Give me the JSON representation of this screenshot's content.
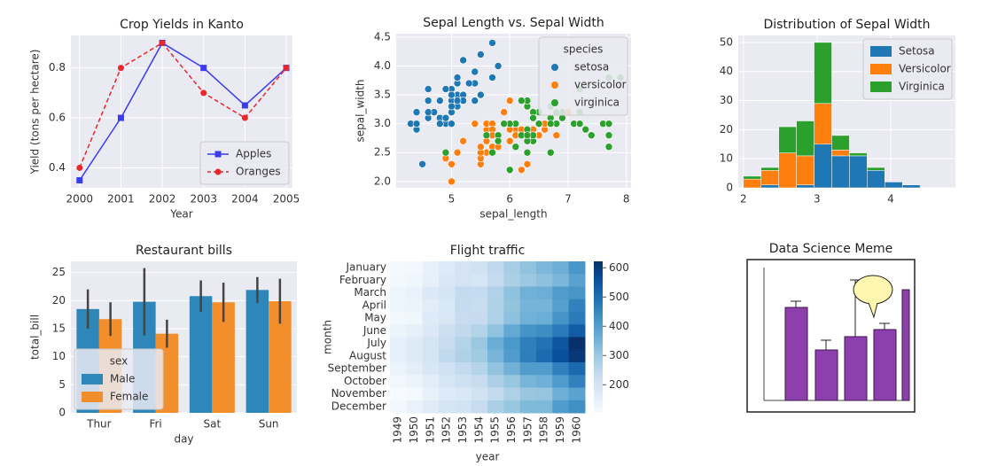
{
  "chart_data": [
    {
      "type": "line",
      "title": "Crop Yields in Kanto",
      "xlabel": "Year",
      "ylabel": "Yield (tons per hectare)",
      "x": [
        2000,
        2001,
        2002,
        2003,
        2004,
        2005
      ],
      "series": [
        {
          "name": "Apples",
          "color": "#3b3bf0",
          "marker": "square",
          "dashed": false,
          "values": [
            0.35,
            0.6,
            0.9,
            0.8,
            0.65,
            0.8
          ]
        },
        {
          "name": "Oranges",
          "color": "#e8282b",
          "marker": "circle",
          "dashed": true,
          "values": [
            0.4,
            0.8,
            0.9,
            0.7,
            0.6,
            0.8
          ]
        }
      ],
      "xlim": [
        1999.79,
        2005.15
      ],
      "xticks": [
        2000,
        2001,
        2002,
        2003,
        2004,
        2005
      ],
      "ylim": [
        0.32,
        0.93
      ],
      "yticks": [
        0.4,
        0.6,
        0.8
      ],
      "grid": true,
      "legend": "lower right"
    },
    {
      "type": "scatter",
      "title": "Sepal Length vs. Sepal Width",
      "xlabel": "sepal_length",
      "ylabel": "sepal_width",
      "legend_title": "species",
      "series": [
        {
          "name": "setosa",
          "color": "#1f77b4",
          "x": [
            5.1,
            4.9,
            4.7,
            4.6,
            5.0,
            5.4,
            4.6,
            5.0,
            4.4,
            4.9,
            5.4,
            4.8,
            4.8,
            4.3,
            5.8,
            5.7,
            5.4,
            5.1,
            5.7,
            5.1,
            5.4,
            5.1,
            4.6,
            5.1,
            4.8,
            5.0,
            5.0,
            5.2,
            5.2,
            4.7,
            4.8,
            5.4,
            5.2,
            5.5,
            4.9,
            5.0,
            5.5,
            4.9,
            4.4,
            5.1,
            5.0,
            4.5,
            4.4,
            5.0,
            5.1,
            4.8,
            5.1,
            4.6,
            5.3,
            5.0
          ],
          "values": [
            3.5,
            3.0,
            3.2,
            3.1,
            3.6,
            3.9,
            3.4,
            3.4,
            2.9,
            3.1,
            3.7,
            3.4,
            3.0,
            3.0,
            4.0,
            4.4,
            3.9,
            3.5,
            3.8,
            3.8,
            3.4,
            3.7,
            3.6,
            3.3,
            3.4,
            3.0,
            3.4,
            3.5,
            3.4,
            3.2,
            3.1,
            3.4,
            4.1,
            4.2,
            3.1,
            3.2,
            3.5,
            3.6,
            3.0,
            3.4,
            3.5,
            2.3,
            3.2,
            3.5,
            3.8,
            3.0,
            3.8,
            3.2,
            3.7,
            3.3
          ]
        },
        {
          "name": "versicolor",
          "color": "#ff7f0e",
          "x": [
            7.0,
            6.4,
            6.9,
            5.5,
            6.5,
            5.7,
            6.3,
            4.9,
            6.6,
            5.2,
            5.0,
            5.9,
            6.0,
            6.1,
            5.6,
            6.7,
            5.6,
            5.8,
            6.2,
            5.6,
            5.9,
            6.1,
            6.3,
            6.1,
            6.4,
            6.6,
            6.8,
            6.7,
            6.0,
            5.7,
            5.5,
            5.5,
            5.8,
            6.0,
            5.4,
            6.0,
            6.7,
            6.3,
            5.6,
            5.5,
            5.5,
            6.1,
            5.8,
            5.0,
            5.6,
            5.7,
            5.7,
            6.2,
            5.1,
            5.7
          ],
          "values": [
            3.2,
            3.2,
            3.1,
            2.3,
            2.8,
            2.8,
            3.3,
            2.4,
            2.9,
            2.7,
            2.0,
            3.0,
            2.2,
            2.9,
            2.9,
            3.1,
            3.0,
            2.7,
            2.2,
            2.5,
            3.2,
            2.8,
            2.5,
            2.8,
            2.9,
            3.0,
            2.8,
            3.0,
            2.9,
            2.6,
            2.4,
            2.4,
            2.7,
            2.7,
            3.0,
            3.4,
            3.1,
            2.3,
            3.0,
            2.5,
            2.6,
            3.0,
            2.6,
            2.3,
            2.7,
            3.0,
            2.9,
            2.9,
            2.5,
            2.8
          ]
        },
        {
          "name": "virginica",
          "color": "#2ca02c",
          "x": [
            6.3,
            5.8,
            7.1,
            6.3,
            6.5,
            7.6,
            4.9,
            7.3,
            6.7,
            7.2,
            6.5,
            6.4,
            6.8,
            5.7,
            5.8,
            6.4,
            6.5,
            7.7,
            7.7,
            6.0,
            6.9,
            5.6,
            7.7,
            6.3,
            6.7,
            7.2,
            6.2,
            6.1,
            6.4,
            7.2,
            7.4,
            7.9,
            6.4,
            6.3,
            6.1,
            7.7,
            6.3,
            6.4,
            6.0,
            6.9,
            6.7,
            6.9,
            5.8,
            6.8,
            6.7,
            6.7,
            6.3,
            6.5,
            6.2,
            5.9
          ],
          "values": [
            3.3,
            2.7,
            3.0,
            2.9,
            3.0,
            3.0,
            2.5,
            2.9,
            2.5,
            3.6,
            3.2,
            2.7,
            3.0,
            2.5,
            2.8,
            3.2,
            3.0,
            3.8,
            2.6,
            2.2,
            3.2,
            2.8,
            2.8,
            2.7,
            3.3,
            3.2,
            2.8,
            3.0,
            2.8,
            3.0,
            2.8,
            3.8,
            2.8,
            2.8,
            2.6,
            3.0,
            3.4,
            3.1,
            3.0,
            3.1,
            3.1,
            3.1,
            2.7,
            3.2,
            3.3,
            3.0,
            2.5,
            3.0,
            3.4,
            3.0
          ]
        }
      ],
      "xlim": [
        4.05,
        8.08
      ],
      "xticks": [
        5,
        6,
        7,
        8
      ],
      "ylim": [
        1.89,
        4.56
      ],
      "yticks": [
        {
          "value": 2,
          "label": "2.0"
        },
        2.5,
        {
          "value": 3,
          "label": "3.0"
        },
        3.5,
        {
          "value": 4,
          "label": "4.0"
        },
        4.5
      ],
      "grid": true,
      "legend": "upper right"
    },
    {
      "type": "histogram",
      "title": "Distribution of Sepal Width",
      "stacked": true,
      "bins": [
        2.0,
        2.24,
        2.48,
        2.72,
        2.96,
        3.2,
        3.44,
        3.68,
        3.92,
        4.16,
        4.4
      ],
      "series": [
        {
          "name": "Setosa",
          "color": "#1f77b4",
          "values": [
            0,
            1,
            0,
            1,
            15,
            11,
            11,
            6,
            2,
            1
          ]
        },
        {
          "name": "Versicolor",
          "color": "#ff7f0e",
          "values": [
            3,
            5,
            12,
            10,
            14,
            2,
            0,
            0,
            0,
            0
          ]
        },
        {
          "name": "Virginica",
          "color": "#2ca02c",
          "values": [
            1,
            1,
            9,
            12,
            21,
            5,
            1,
            1,
            0,
            0
          ]
        }
      ],
      "xlim": [
        1.93,
        4.88
      ],
      "xticks": [
        2,
        3,
        4
      ],
      "ylim": [
        0,
        52.4
      ],
      "yticks": [
        0,
        10,
        20,
        30,
        40,
        50
      ],
      "grid": true,
      "legend": "upper right"
    },
    {
      "type": "bar",
      "title": "Restaurant bills",
      "xlabel": "day",
      "ylabel": "total_bill",
      "legend_title": "sex",
      "categories": [
        "Thur",
        "Fri",
        "Sat",
        "Sun"
      ],
      "series": [
        {
          "name": "Male",
          "color": "#2e86b9",
          "values": [
            18.5,
            19.8,
            20.8,
            21.9
          ],
          "errors": [
            3.5,
            6,
            2.8,
            2.3
          ]
        },
        {
          "name": "Female",
          "color": "#f28e2b",
          "values": [
            16.7,
            14.1,
            19.7,
            19.9
          ],
          "errors": [
            3,
            2.5,
            3.5,
            4
          ]
        }
      ],
      "ylim": [
        0,
        27
      ],
      "yticks": [
        0,
        5,
        10,
        15,
        20,
        25
      ],
      "grid": true,
      "legend": "lower left"
    },
    {
      "type": "heatmap",
      "title": "Flight traffic",
      "xlabel": "year",
      "ylabel": "month",
      "x": [
        "1949",
        "1950",
        "1951",
        "1952",
        "1953",
        "1954",
        "1955",
        "1956",
        "1957",
        "1958",
        "1959",
        "1960"
      ],
      "y": [
        "January",
        "February",
        "March",
        "April",
        "May",
        "June",
        "July",
        "August",
        "September",
        "October",
        "November",
        "December"
      ],
      "values": [
        [
          112,
          115,
          145,
          171,
          196,
          204,
          242,
          284,
          315,
          340,
          360,
          417
        ],
        [
          118,
          126,
          150,
          180,
          196,
          188,
          233,
          277,
          301,
          318,
          342,
          391
        ],
        [
          132,
          141,
          178,
          193,
          236,
          235,
          267,
          317,
          356,
          362,
          406,
          419
        ],
        [
          129,
          135,
          163,
          181,
          235,
          227,
          269,
          313,
          348,
          348,
          396,
          461
        ],
        [
          121,
          125,
          172,
          183,
          229,
          234,
          270,
          318,
          355,
          363,
          420,
          472
        ],
        [
          135,
          149,
          178,
          218,
          243,
          264,
          315,
          374,
          422,
          435,
          472,
          535
        ],
        [
          148,
          170,
          199,
          230,
          264,
          302,
          364,
          413,
          465,
          491,
          548,
          622
        ],
        [
          148,
          170,
          199,
          242,
          272,
          293,
          347,
          405,
          467,
          505,
          559,
          606
        ],
        [
          136,
          158,
          184,
          209,
          237,
          259,
          312,
          355,
          404,
          404,
          463,
          508
        ],
        [
          119,
          133,
          162,
          191,
          211,
          229,
          274,
          306,
          347,
          359,
          407,
          461
        ],
        [
          104,
          114,
          146,
          172,
          180,
          203,
          237,
          271,
          305,
          310,
          362,
          390
        ],
        [
          118,
          140,
          166,
          194,
          201,
          229,
          278,
          306,
          336,
          337,
          405,
          432
        ]
      ],
      "zlim": [
        104,
        622
      ],
      "zticks": [
        200,
        300,
        400,
        500,
        600
      ],
      "colormap": [
        "#f7fbff",
        "#deebf7",
        "#c6dbef",
        "#9ecae1",
        "#6baed6",
        "#4292c6",
        "#2171b5",
        "#08519c",
        "#08306b"
      ]
    },
    {
      "type": "image",
      "title": "Data Science Meme"
    }
  ]
}
